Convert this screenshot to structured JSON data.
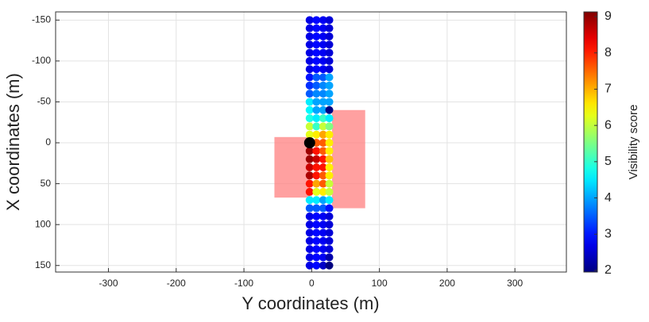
{
  "chart_data": {
    "type": "scatter",
    "x_label": "Y coordinates (m)",
    "y_label": "X coordinates (m)",
    "colorbar_label": "Visibility score",
    "xlim": [
      -378,
      376
    ],
    "xticks": [
      -300,
      -200,
      -100,
      0,
      100,
      200,
      300
    ],
    "ylim": [
      -160,
      158
    ],
    "yticks": [
      -150,
      -100,
      -50,
      0,
      50,
      100,
      150
    ],
    "y_reversed": true,
    "grid": true,
    "clim": [
      2,
      9
    ],
    "cticks": [
      2,
      3,
      4,
      5,
      6,
      7,
      8,
      9
    ],
    "colormap": "jet",
    "y": [
      -150,
      -140,
      -130,
      -120,
      -110,
      -100,
      -90,
      -80,
      -70,
      -60,
      -50,
      -40,
      -30,
      -20,
      -10,
      0,
      10,
      20,
      30,
      40,
      50,
      60,
      70,
      80,
      90,
      100,
      110,
      120,
      130,
      140,
      150
    ],
    "series": [
      {
        "x": -3,
        "values": [
          2.7,
          2.7,
          2.7,
          2.7,
          2.7,
          2.7,
          2.7,
          3,
          3.2,
          3.5,
          4.5,
          4.6,
          4.8,
          6,
          6.2,
          7,
          8.8,
          8.8,
          8.5,
          8.7,
          8,
          8,
          4.5,
          3.5,
          2.7,
          2.7,
          2.7,
          2.7,
          2.7,
          2.7,
          2.7
        ]
      },
      {
        "x": 7,
        "values": [
          2.9,
          2.9,
          2.9,
          2.9,
          2.9,
          2.9,
          2.9,
          3.5,
          3.5,
          3.8,
          4,
          4,
          4.5,
          5,
          6.5,
          7.5,
          8,
          8.5,
          8,
          8,
          7,
          6.2,
          4.5,
          3.5,
          2.9,
          2.9,
          2.9,
          2.9,
          2.9,
          2.9,
          2.9
        ]
      },
      {
        "x": 17,
        "values": [
          2.8,
          2.8,
          2.8,
          2.8,
          2.8,
          2.8,
          2.8,
          3.5,
          3.8,
          3.8,
          4,
          4,
          5,
          6,
          7,
          7.5,
          7.5,
          8,
          8,
          7.5,
          7.5,
          6.5,
          4,
          3.5,
          2.8,
          2.8,
          2.8,
          2.8,
          2.8,
          2.8,
          2.5
        ]
      },
      {
        "x": 26,
        "values": [
          2.6,
          2.6,
          2.6,
          2.6,
          2.6,
          2.6,
          2.6,
          4,
          4,
          4,
          4,
          2,
          4.5,
          5.5,
          6.5,
          6.5,
          6.5,
          6.8,
          6.5,
          6.5,
          6,
          6,
          4.5,
          3,
          2.6,
          2.6,
          2.6,
          2.6,
          2.6,
          2.3,
          2
        ]
      }
    ],
    "marker": {
      "x": -3,
      "y": 0,
      "color": "#000000"
    },
    "regions": [
      {
        "x_range": [
          -55,
          -3
        ],
        "y_range": [
          -7,
          67
        ],
        "color": "#ff8080"
      },
      {
        "x_range": [
          30,
          79
        ],
        "y_range": [
          -40,
          80
        ],
        "color": "#ff8080"
      }
    ]
  }
}
